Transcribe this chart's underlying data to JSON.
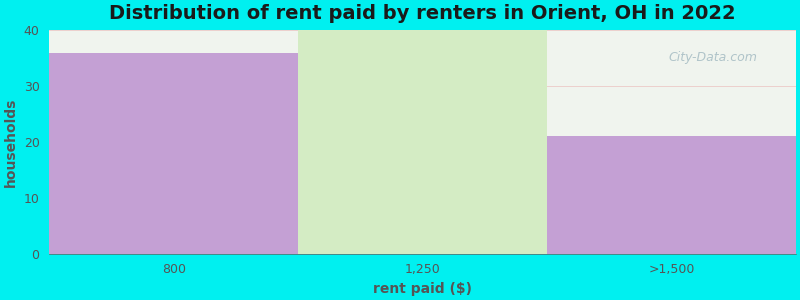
{
  "title": "Distribution of rent paid by renters in Orient, OH in 2022",
  "categories": [
    "800",
    "1,250",
    ">1,500"
  ],
  "values": [
    36,
    40,
    21
  ],
  "bar_colors": [
    "#c4a0d4",
    "#d4ecc4",
    "#c4a0d4"
  ],
  "xlabel": "rent paid ($)",
  "ylabel": "households",
  "ylim": [
    0,
    40
  ],
  "yticks": [
    0,
    10,
    20,
    30,
    40
  ],
  "background_color": "#00f0f0",
  "plot_bg_color": "#f0f4ee",
  "title_fontsize": 14,
  "axis_label_fontsize": 10,
  "tick_fontsize": 9,
  "watermark_text": "City-Data.com",
  "title_color": "#1a1a1a",
  "tick_color": "#555555",
  "label_color": "#555555"
}
